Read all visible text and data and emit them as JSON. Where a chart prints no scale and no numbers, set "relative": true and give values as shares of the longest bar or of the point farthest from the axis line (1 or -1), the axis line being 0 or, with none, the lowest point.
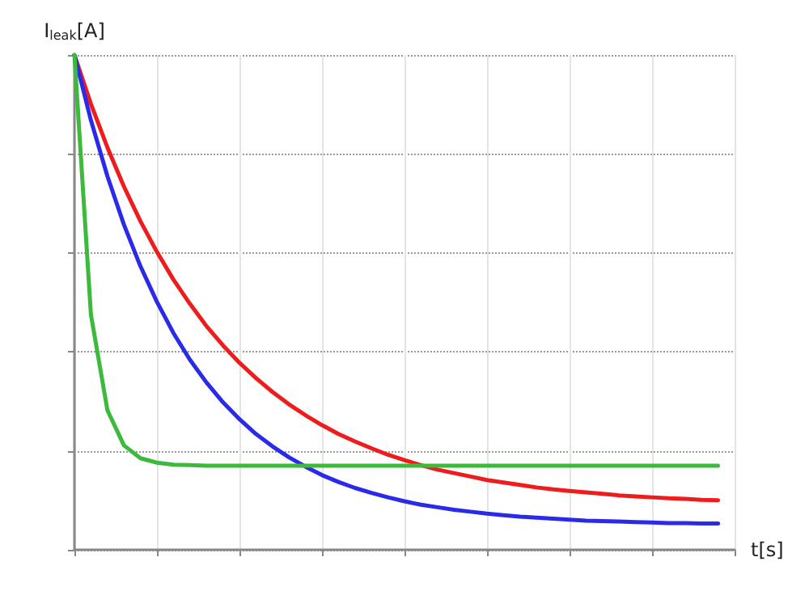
{
  "chart_data": {
    "type": "line",
    "relative": true,
    "ylabel": "I$_{leak}$[A]",
    "xlabel": "t[s]",
    "grid": true,
    "marker": "none",
    "line_style": "solid",
    "categories": [
      null,
      null,
      null,
      null,
      null,
      null,
      null,
      null,
      null,
      null,
      null,
      null,
      null,
      null,
      null,
      null,
      null,
      null,
      null,
      null,
      null,
      null,
      null,
      null,
      null,
      null,
      null,
      null,
      null,
      null,
      null,
      null,
      null,
      null,
      null,
      null,
      null,
      null,
      null,
      null,
      null
    ],
    "series": [
      {
        "color": "#ee1c1c",
        "values": [
          1.0,
          0.901,
          0.813,
          0.734,
          0.664,
          0.602,
          0.546,
          0.497,
          0.452,
          0.413,
          0.378,
          0.347,
          0.319,
          0.294,
          0.272,
          0.252,
          0.234,
          0.219,
          0.205,
          0.192,
          0.181,
          0.171,
          0.162,
          0.155,
          0.148,
          0.141,
          0.136,
          0.131,
          0.126,
          0.122,
          0.119,
          0.116,
          0.113,
          0.11,
          0.108,
          0.106,
          0.104,
          0.103,
          0.101,
          0.1,
          null
        ]
      },
      {
        "color": "#2a2ae8",
        "values": [
          1.0,
          0.868,
          0.755,
          0.657,
          0.573,
          0.501,
          0.438,
          0.384,
          0.338,
          0.298,
          0.264,
          0.234,
          0.209,
          0.187,
          0.168,
          0.151,
          0.137,
          0.125,
          0.115,
          0.106,
          0.098,
          0.091,
          0.086,
          0.081,
          0.077,
          0.073,
          0.07,
          0.067,
          0.065,
          0.063,
          0.061,
          0.059,
          0.058,
          0.057,
          0.056,
          0.055,
          0.054,
          0.054,
          0.053,
          0.053,
          null
        ]
      },
      {
        "color": "#3cba3c",
        "values": [
          1.0,
          0.475,
          0.282,
          0.211,
          0.185,
          0.176,
          0.172,
          0.171,
          0.17,
          0.17,
          0.17,
          0.17,
          0.17,
          0.17,
          0.17,
          0.17,
          0.17,
          0.17,
          0.17,
          0.17,
          0.17,
          0.17,
          0.17,
          0.17,
          0.17,
          0.17,
          0.17,
          0.17,
          0.17,
          0.17,
          0.17,
          0.17,
          0.17,
          0.17,
          0.17,
          0.17,
          0.17,
          0.17,
          0.17,
          0.17,
          null
        ]
      }
    ]
  }
}
